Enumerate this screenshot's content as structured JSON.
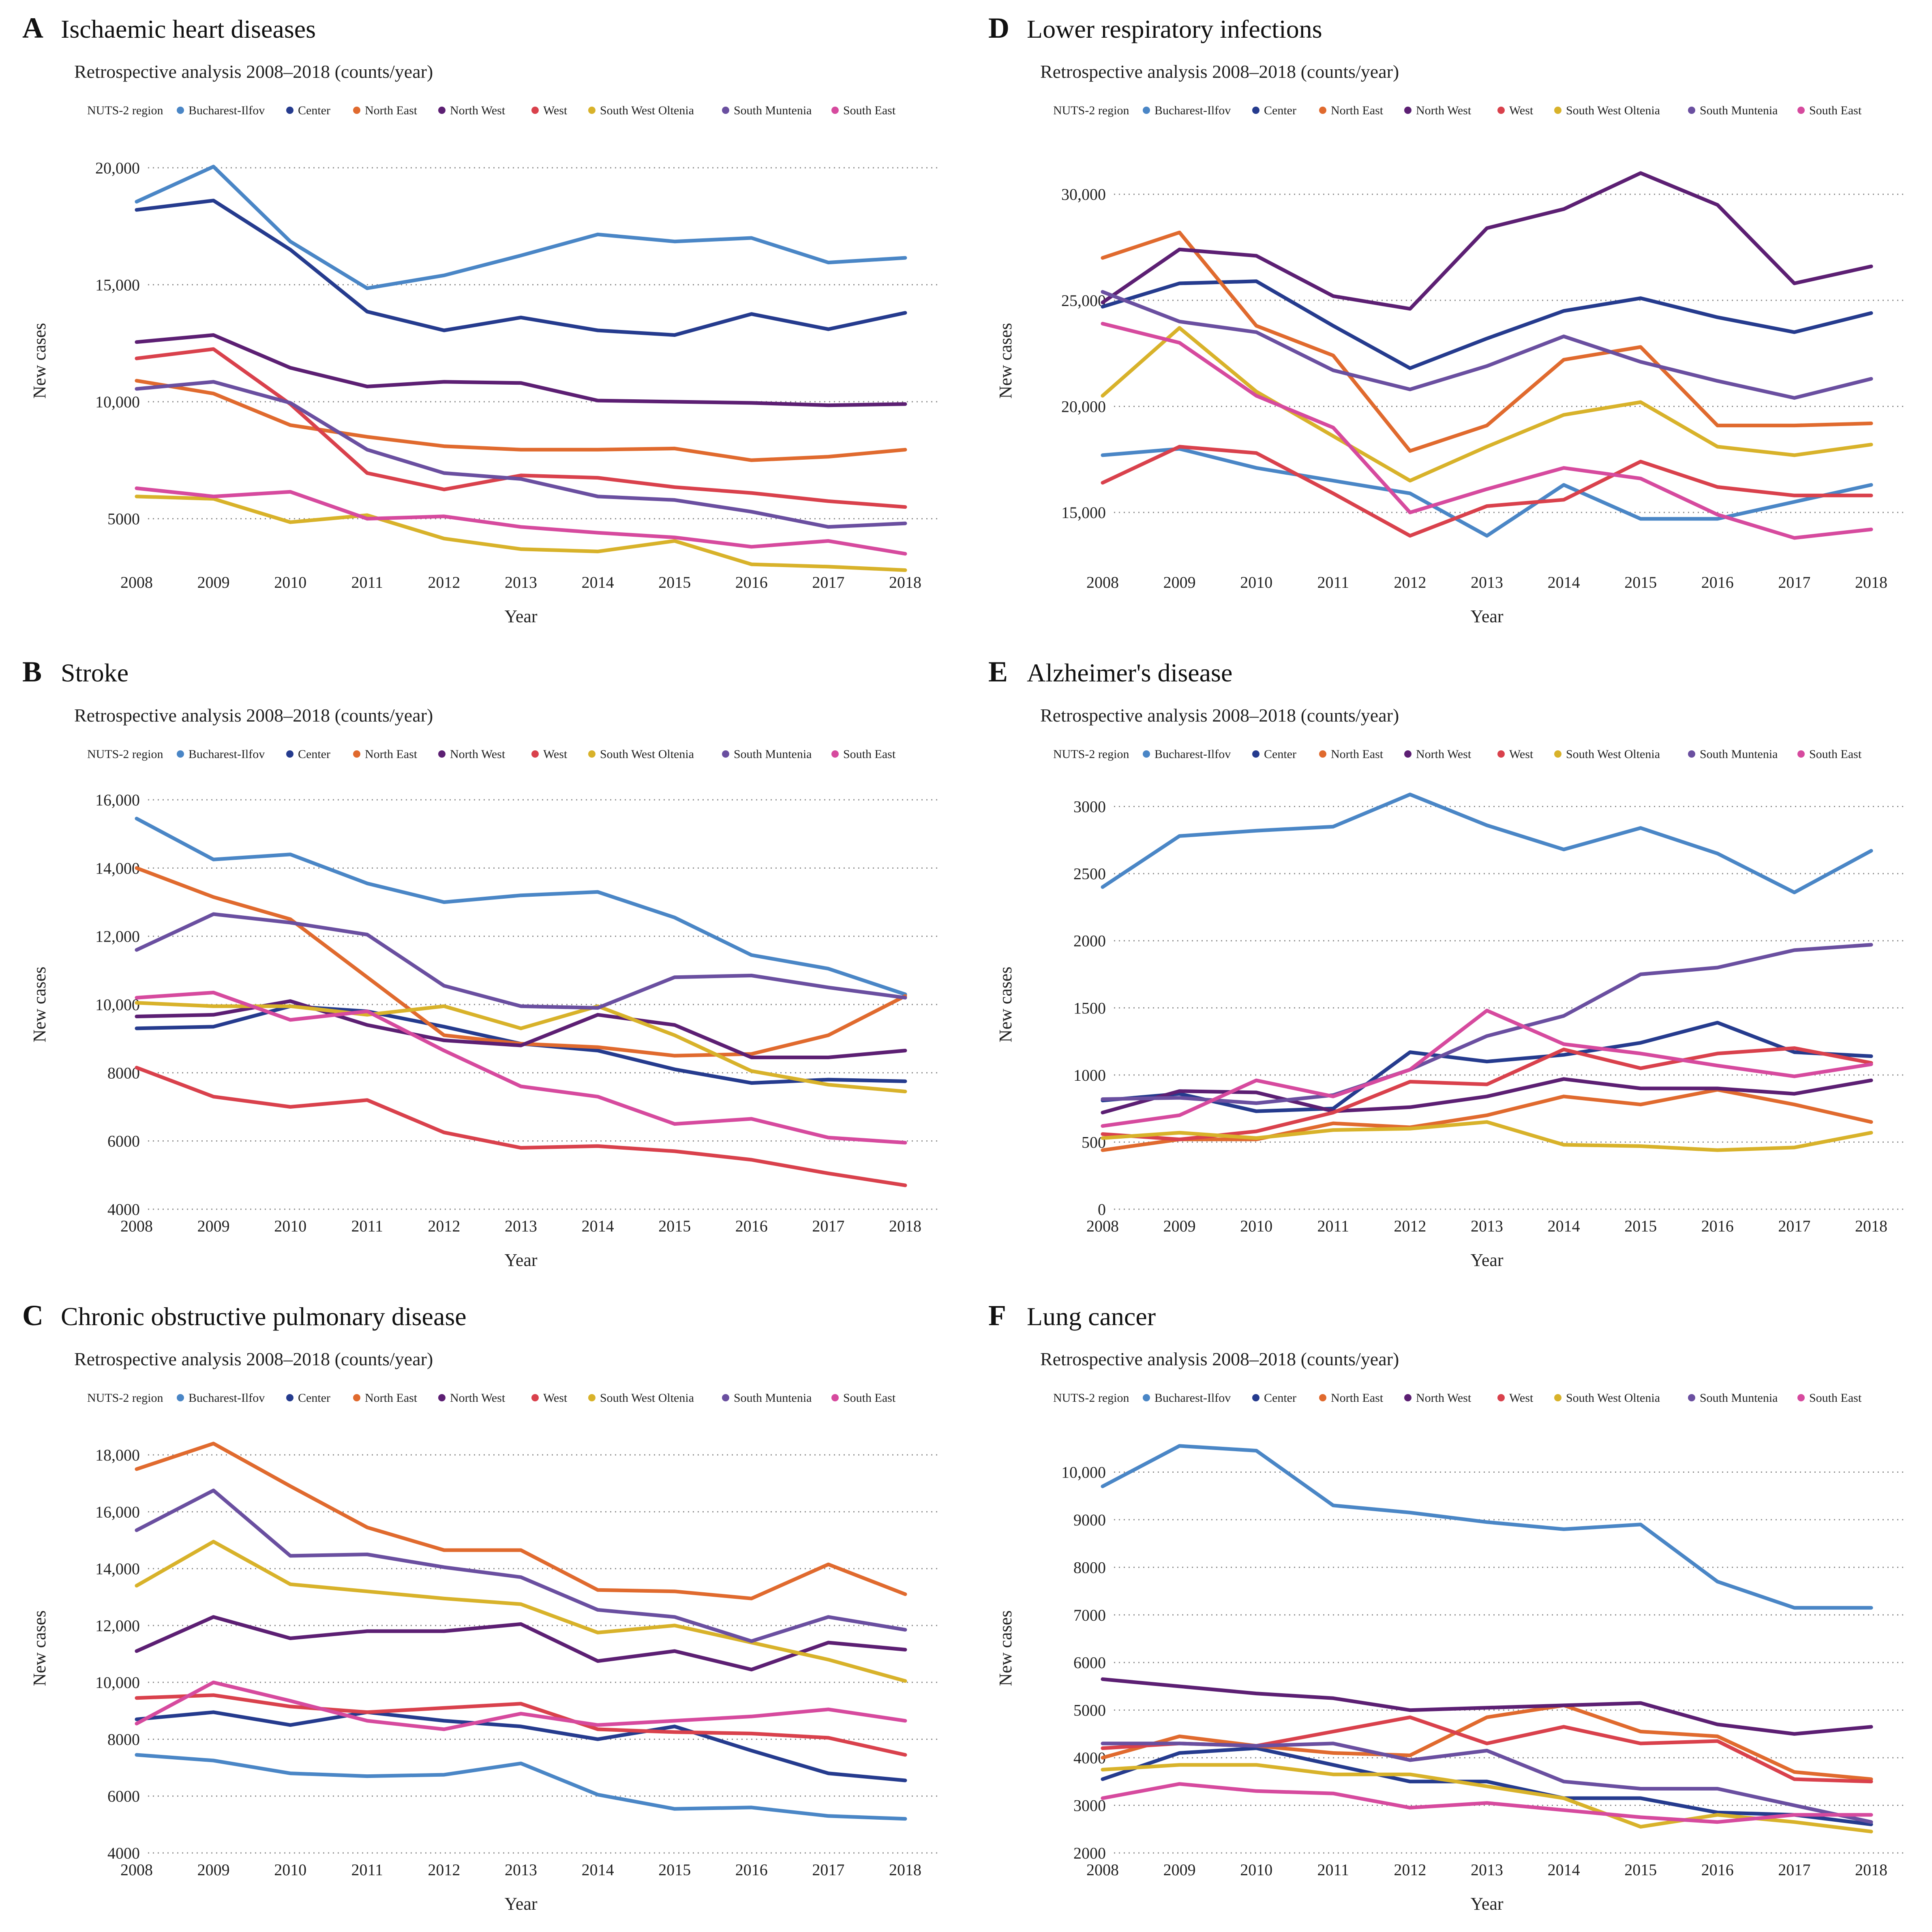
{
  "legend": {
    "label": "NUTS-2 region",
    "regions": [
      "Bucharest-Ilfov",
      "Center",
      "North East",
      "North West",
      "West",
      "South West Oltenia",
      "South Muntenia",
      "South East"
    ],
    "colors": [
      "#4a86c6",
      "#253b8e",
      "#e06a2e",
      "#5c1f73",
      "#d9414c",
      "#d8b22a",
      "#6a4fa0",
      "#d64a9e"
    ]
  },
  "chart_data": [
    {
      "type": "line",
      "letter": "A",
      "title": "Ischaemic heart diseases",
      "subtitle": "Retrospective analysis 2008–2018 (counts/year)",
      "xlabel": "Year",
      "ylabel": "New cases",
      "x": [
        "2008",
        "2009",
        "2010",
        "2011",
        "2012",
        "2013",
        "2014",
        "2015",
        "2016",
        "2017",
        "2018"
      ],
      "ylim": [
        3000,
        20500
      ],
      "yticks": [
        5000,
        10000,
        15000,
        20000
      ],
      "yticklabels": [
        "5000",
        "10,000",
        "15,000",
        "20,000"
      ],
      "series": [
        {
          "name": "Bucharest-Ilfov",
          "values": [
            18550,
            20050,
            16850,
            14850,
            15400,
            16250,
            17150,
            16850,
            17000,
            15950,
            16150
          ]
        },
        {
          "name": "Center",
          "values": [
            18200,
            18600,
            16500,
            13850,
            13050,
            13600,
            13050,
            12850,
            13750,
            13100,
            13800
          ]
        },
        {
          "name": "North East",
          "values": [
            10900,
            10350,
            9000,
            8500,
            8100,
            7950,
            7950,
            8000,
            7500,
            7650,
            7950
          ]
        },
        {
          "name": "North West",
          "values": [
            12550,
            12850,
            11450,
            10650,
            10850,
            10800,
            10050,
            10000,
            9950,
            9850,
            9900
          ]
        },
        {
          "name": "West",
          "values": [
            11850,
            12250,
            9900,
            6950,
            6250,
            6850,
            6750,
            6350,
            6100,
            5750,
            5500
          ]
        },
        {
          "name": "South West Oltenia",
          "values": [
            5950,
            5850,
            4850,
            5150,
            4150,
            3700,
            3600,
            4050,
            3050,
            2950,
            2800
          ]
        },
        {
          "name": "South Muntenia",
          "values": [
            10550,
            10850,
            9950,
            7950,
            6950,
            6700,
            5950,
            5800,
            5300,
            4650,
            4800
          ]
        },
        {
          "name": "South East",
          "values": [
            6300,
            5950,
            6150,
            5000,
            5100,
            4650,
            4400,
            4200,
            3800,
            4050,
            3500
          ]
        }
      ]
    },
    {
      "type": "line",
      "letter": "D",
      "title": "Lower respiratory infections",
      "subtitle": "Retrospective analysis 2008–2018 (counts/year)",
      "xlabel": "Year",
      "ylabel": "New cases",
      "x": [
        "2008",
        "2009",
        "2010",
        "2011",
        "2012",
        "2013",
        "2014",
        "2015",
        "2016",
        "2017",
        "2018"
      ],
      "ylim": [
        12500,
        31800
      ],
      "yticks": [
        15000,
        20000,
        25000,
        30000
      ],
      "yticklabels": [
        "15,000",
        "20,000",
        "25,000",
        "30,000"
      ],
      "series": [
        {
          "name": "Bucharest-Ilfov",
          "values": [
            17700,
            18000,
            17100,
            16500,
            15900,
            13900,
            16300,
            14700,
            14700,
            15500,
            16300
          ]
        },
        {
          "name": "Center",
          "values": [
            24700,
            25800,
            25900,
            23800,
            21800,
            23200,
            24500,
            25100,
            24200,
            23500,
            24400
          ]
        },
        {
          "name": "North East",
          "values": [
            27000,
            28200,
            23800,
            22400,
            17900,
            19100,
            22200,
            22800,
            19100,
            19100,
            19200
          ]
        },
        {
          "name": "North West",
          "values": [
            24900,
            27400,
            27100,
            25200,
            24600,
            28400,
            29300,
            31000,
            29500,
            25800,
            26600
          ]
        },
        {
          "name": "West",
          "values": [
            16400,
            18100,
            17800,
            15900,
            13900,
            15300,
            15600,
            17400,
            16200,
            15800,
            15800
          ]
        },
        {
          "name": "South West Oltenia",
          "values": [
            20500,
            23700,
            20700,
            18600,
            16500,
            18100,
            19600,
            20200,
            18100,
            17700,
            18200
          ]
        },
        {
          "name": "South Muntenia",
          "values": [
            25400,
            24000,
            23500,
            21700,
            20800,
            21900,
            23300,
            22100,
            21200,
            20400,
            21300
          ]
        },
        {
          "name": "South East",
          "values": [
            23900,
            23000,
            20500,
            19000,
            15000,
            16100,
            17100,
            16600,
            14900,
            13800,
            14200
          ]
        }
      ]
    },
    {
      "type": "line",
      "letter": "B",
      "title": "Stroke",
      "subtitle": "Retrospective analysis 2008–2018 (counts/year)",
      "xlabel": "Year",
      "ylabel": "New cases",
      "x": [
        "2008",
        "2009",
        "2010",
        "2011",
        "2012",
        "2013",
        "2014",
        "2015",
        "2016",
        "2017",
        "2018"
      ],
      "ylim": [
        4000,
        16000
      ],
      "yticks": [
        4000,
        6000,
        8000,
        10000,
        12000,
        14000,
        16000
      ],
      "yticklabels": [
        "4000",
        "6000",
        "8000",
        "10,000",
        "12,000",
        "14,000",
        "16,000"
      ],
      "series": [
        {
          "name": "Bucharest-Ilfov",
          "values": [
            15450,
            14250,
            14400,
            13550,
            13000,
            13200,
            13300,
            12550,
            11450,
            11050,
            10300
          ]
        },
        {
          "name": "Center",
          "values": [
            9300,
            9350,
            9950,
            9800,
            9350,
            8850,
            8650,
            8100,
            7700,
            7800,
            7750
          ]
        },
        {
          "name": "North East",
          "values": [
            14000,
            13150,
            12500,
            10800,
            9100,
            8850,
            8750,
            8500,
            8550,
            9100,
            10250
          ]
        },
        {
          "name": "North West",
          "values": [
            9650,
            9700,
            10100,
            9400,
            8950,
            8800,
            9700,
            9400,
            8450,
            8450,
            8650
          ]
        },
        {
          "name": "West",
          "values": [
            8150,
            7300,
            7000,
            7200,
            6250,
            5800,
            5850,
            5700,
            5450,
            5050,
            4700
          ]
        },
        {
          "name": "South West Oltenia",
          "values": [
            10050,
            9950,
            9950,
            9700,
            9950,
            9300,
            9950,
            9100,
            8050,
            7650,
            7450
          ]
        },
        {
          "name": "South Muntenia",
          "values": [
            11600,
            12650,
            12400,
            12050,
            10550,
            9950,
            9900,
            10800,
            10850,
            10500,
            10200
          ]
        },
        {
          "name": "South East",
          "values": [
            10200,
            10350,
            9550,
            9800,
            8650,
            7600,
            7300,
            6500,
            6650,
            6100,
            5950
          ]
        }
      ]
    },
    {
      "type": "line",
      "letter": "E",
      "title": "Alzheimer's disease",
      "subtitle": "Retrospective analysis 2008–2018 (counts/year)",
      "xlabel": "Year",
      "ylabel": "New cases",
      "x": [
        "2008",
        "2009",
        "2010",
        "2011",
        "2012",
        "2013",
        "2014",
        "2015",
        "2016",
        "2017",
        "2018"
      ],
      "ylim": [
        0,
        3050
      ],
      "yticks": [
        0,
        500,
        1000,
        1500,
        2000,
        2500,
        3000
      ],
      "yticklabels": [
        "0",
        "500",
        "1000",
        "1500",
        "2000",
        "2500",
        "3000"
      ],
      "series": [
        {
          "name": "Bucharest-Ilfov",
          "values": [
            2400,
            2780,
            2820,
            2850,
            3090,
            2860,
            2680,
            2840,
            2650,
            2360,
            2670
          ]
        },
        {
          "name": "Center",
          "values": [
            810,
            860,
            730,
            750,
            1170,
            1100,
            1150,
            1240,
            1390,
            1170,
            1140
          ]
        },
        {
          "name": "North East",
          "values": [
            440,
            520,
            520,
            640,
            610,
            700,
            840,
            780,
            890,
            780,
            650
          ]
        },
        {
          "name": "North West",
          "values": [
            720,
            880,
            870,
            730,
            760,
            840,
            970,
            900,
            900,
            860,
            960
          ]
        },
        {
          "name": "West",
          "values": [
            560,
            520,
            580,
            720,
            950,
            930,
            1190,
            1050,
            1160,
            1200,
            1090
          ]
        },
        {
          "name": "South West Oltenia",
          "values": [
            530,
            570,
            530,
            590,
            600,
            650,
            480,
            470,
            440,
            460,
            570
          ]
        },
        {
          "name": "South Muntenia",
          "values": [
            820,
            830,
            790,
            850,
            1040,
            1290,
            1440,
            1750,
            1800,
            1930,
            1970
          ]
        },
        {
          "name": "South East",
          "values": [
            620,
            700,
            960,
            840,
            1040,
            1480,
            1230,
            1160,
            1070,
            990,
            1080
          ]
        }
      ]
    },
    {
      "type": "line",
      "letter": "C",
      "title": "Chronic obstructive pulmonary disease",
      "subtitle": "Retrospective analysis 2008–2018 (counts/year)",
      "xlabel": "Year",
      "ylabel": "New cases",
      "x": [
        "2008",
        "2009",
        "2010",
        "2011",
        "2012",
        "2013",
        "2014",
        "2015",
        "2016",
        "2017",
        "2018"
      ],
      "ylim": [
        4000,
        18400
      ],
      "yticks": [
        4000,
        6000,
        8000,
        10000,
        12000,
        14000,
        16000,
        18000
      ],
      "yticklabels": [
        "4000",
        "6000",
        "8000",
        "10,000",
        "12,000",
        "14,000",
        "16,000",
        "18,000"
      ],
      "series": [
        {
          "name": "Bucharest-Ilfov",
          "values": [
            7450,
            7250,
            6800,
            6700,
            6750,
            7150,
            6050,
            5550,
            5600,
            5300,
            5200
          ]
        },
        {
          "name": "Center",
          "values": [
            8700,
            8950,
            8500,
            8950,
            8650,
            8450,
            8000,
            8450,
            7600,
            6800,
            6550
          ]
        },
        {
          "name": "North East",
          "values": [
            17500,
            18400,
            16900,
            15450,
            14650,
            14650,
            13250,
            13200,
            12950,
            14150,
            13100
          ]
        },
        {
          "name": "North West",
          "values": [
            11100,
            12300,
            11550,
            11800,
            11800,
            12050,
            10750,
            11100,
            10450,
            11400,
            11150
          ]
        },
        {
          "name": "West",
          "values": [
            9450,
            9550,
            9150,
            8950,
            9100,
            9250,
            8350,
            8250,
            8200,
            8050,
            7450
          ]
        },
        {
          "name": "South West Oltenia",
          "values": [
            13400,
            14950,
            13450,
            13200,
            12950,
            12750,
            11750,
            12000,
            11400,
            10800,
            10050
          ]
        },
        {
          "name": "South Muntenia",
          "values": [
            15350,
            16750,
            14450,
            14500,
            14050,
            13700,
            12550,
            12300,
            11450,
            12300,
            11850
          ]
        },
        {
          "name": "South East",
          "values": [
            8550,
            10000,
            9350,
            8650,
            8350,
            8900,
            8500,
            8650,
            8800,
            9050,
            8650
          ]
        }
      ]
    },
    {
      "type": "line",
      "letter": "F",
      "title": "Lung cancer",
      "subtitle": "Retrospective analysis 2008–2018 (counts/year)",
      "xlabel": "Year",
      "ylabel": "New cases",
      "x": [
        "2008",
        "2009",
        "2010",
        "2011",
        "2012",
        "2013",
        "2014",
        "2015",
        "2016",
        "2017",
        "2018"
      ],
      "ylim": [
        2000,
        10600
      ],
      "yticks": [
        2000,
        3000,
        4000,
        5000,
        6000,
        7000,
        8000,
        9000,
        10000
      ],
      "yticklabels": [
        "2000",
        "3000",
        "4000",
        "5000",
        "6000",
        "7000",
        "8000",
        "9000",
        "10,000"
      ],
      "series": [
        {
          "name": "Bucharest-Ilfov",
          "values": [
            9700,
            10550,
            10450,
            9300,
            9150,
            8950,
            8800,
            8900,
            7700,
            7150,
            7150
          ]
        },
        {
          "name": "Center",
          "values": [
            3550,
            4100,
            4200,
            3850,
            3500,
            3500,
            3150,
            3150,
            2850,
            2800,
            2600
          ]
        },
        {
          "name": "North East",
          "values": [
            4000,
            4450,
            4250,
            4100,
            4050,
            4850,
            5100,
            4550,
            4450,
            3700,
            3550
          ]
        },
        {
          "name": "North West",
          "values": [
            5650,
            5500,
            5350,
            5250,
            5000,
            5050,
            5100,
            5150,
            4700,
            4500,
            4650
          ]
        },
        {
          "name": "West",
          "values": [
            4200,
            4300,
            4250,
            4550,
            4850,
            4300,
            4650,
            4300,
            4350,
            3550,
            3500
          ]
        },
        {
          "name": "South West Oltenia",
          "values": [
            3750,
            3850,
            3850,
            3650,
            3650,
            3400,
            3150,
            2550,
            2800,
            2650,
            2450
          ]
        },
        {
          "name": "South Muntenia",
          "values": [
            4300,
            4300,
            4250,
            4300,
            3950,
            4150,
            3500,
            3350,
            3350,
            3000,
            2650
          ]
        },
        {
          "name": "South East",
          "values": [
            3150,
            3450,
            3300,
            3250,
            2950,
            3050,
            2900,
            2750,
            2650,
            2800,
            2800
          ]
        }
      ]
    }
  ]
}
